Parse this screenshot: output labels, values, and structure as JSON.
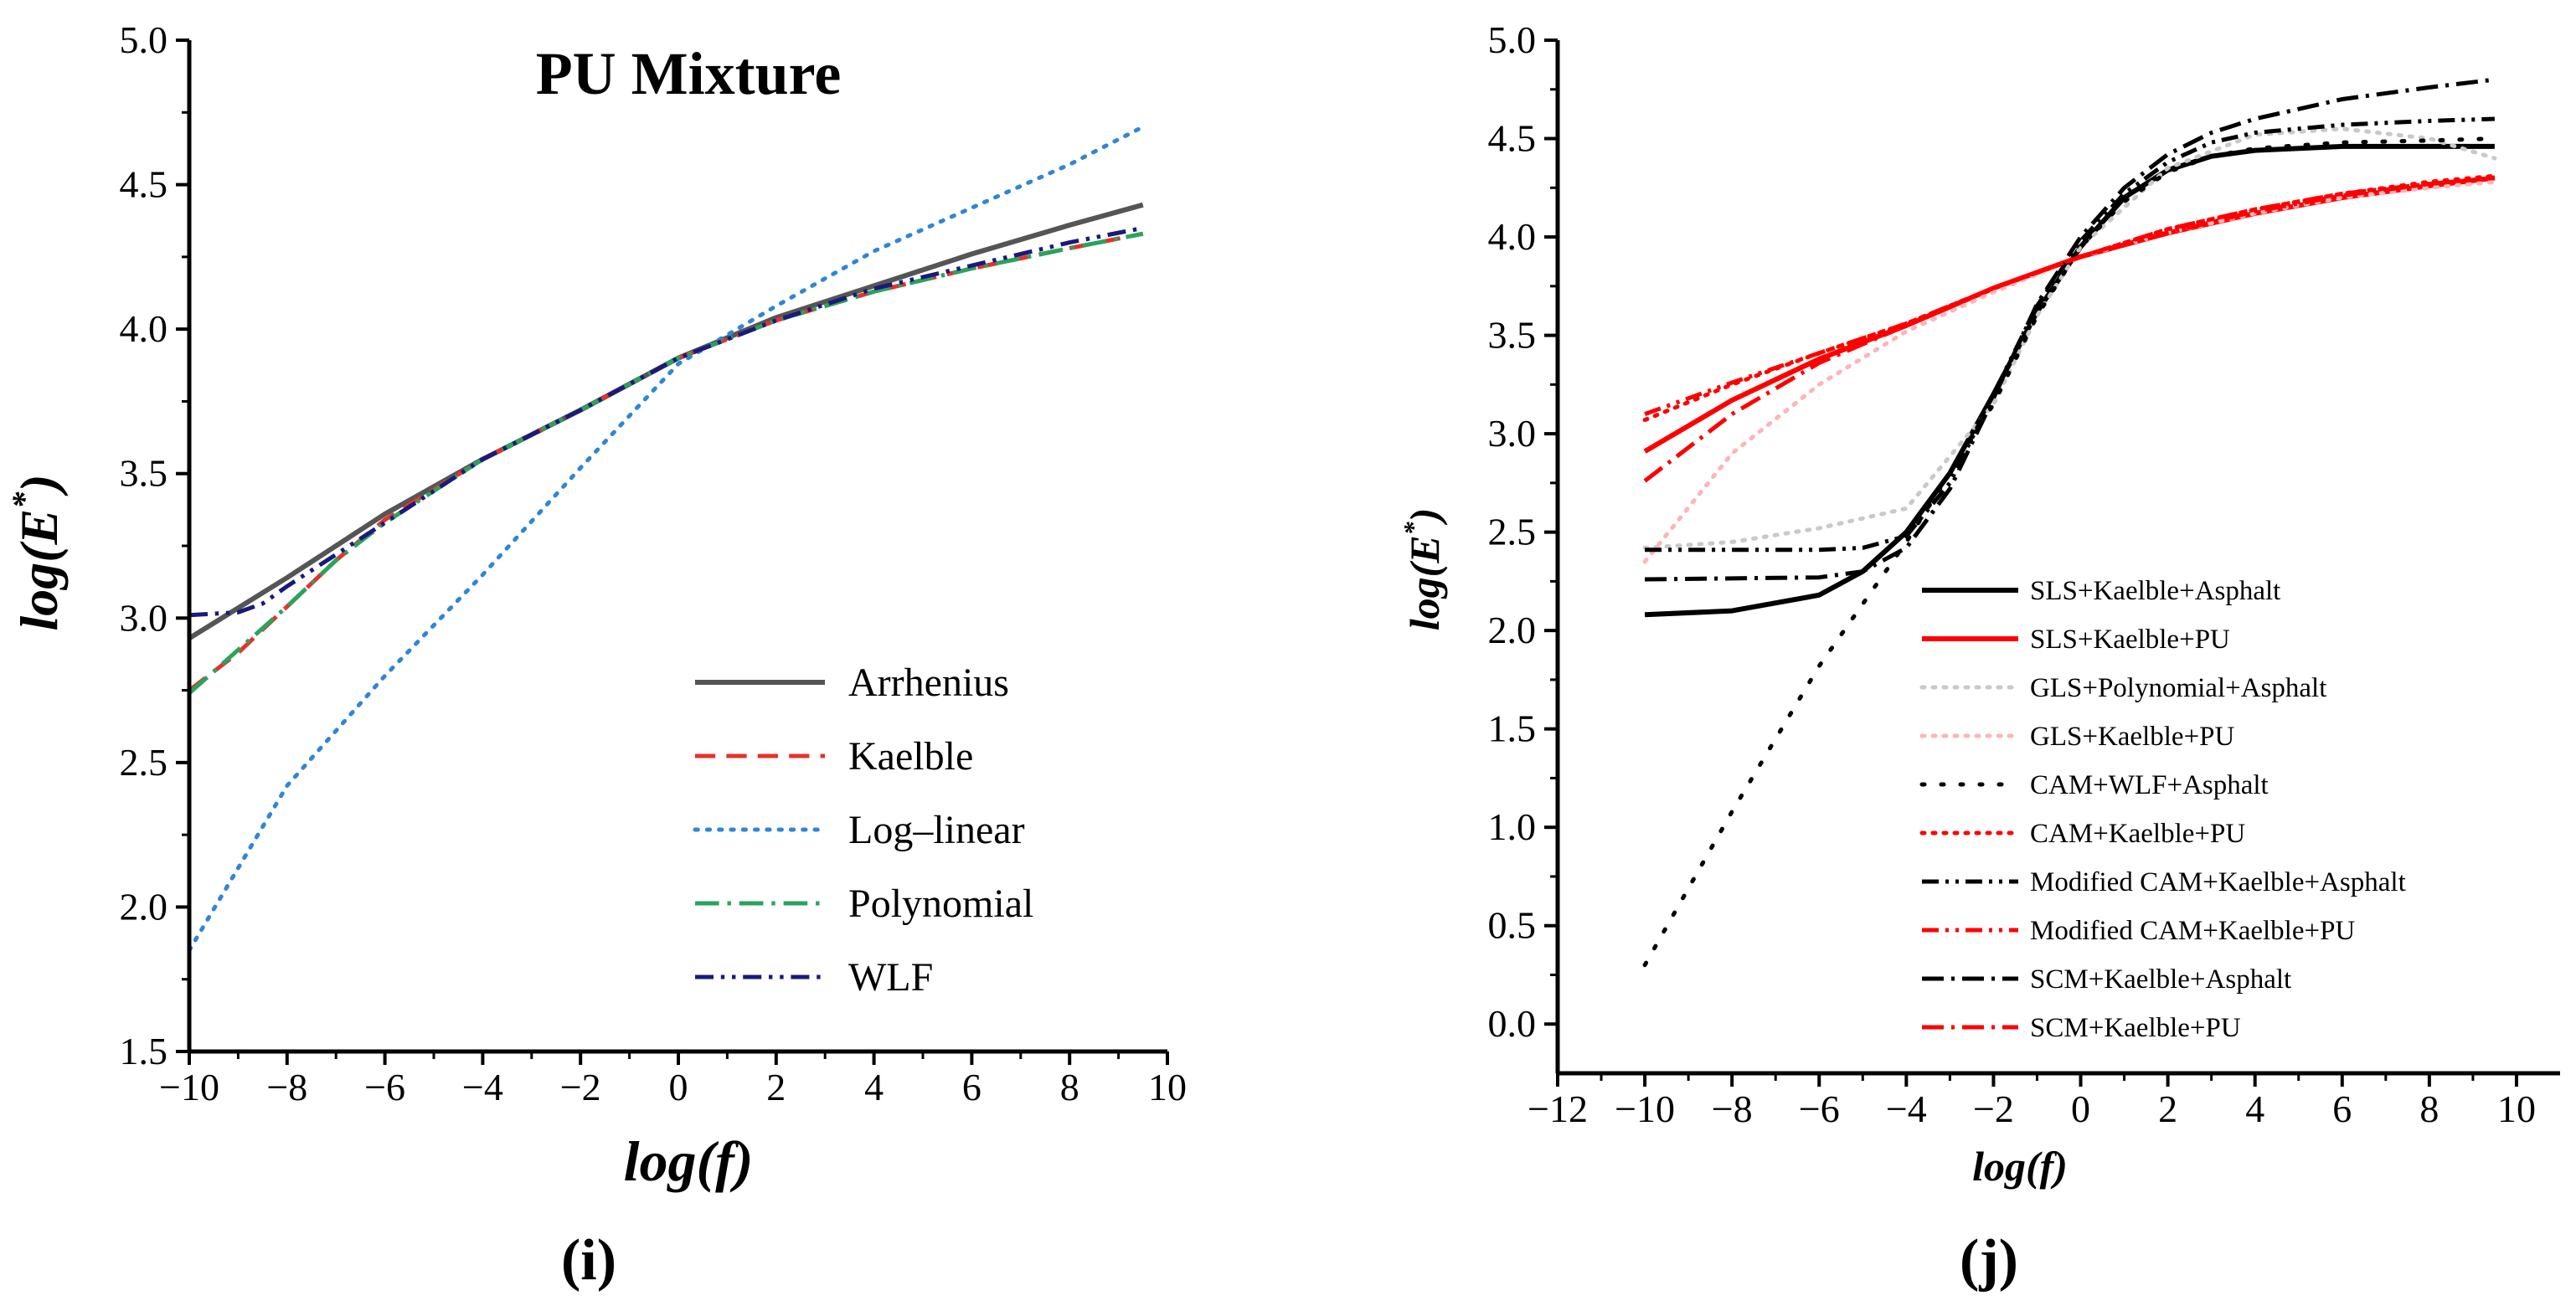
{
  "chart_data": [
    {
      "type": "line",
      "panel": "(i)",
      "panel_letter": "i",
      "title": "PU Mixture",
      "xlabel": "log(f)",
      "ylabel_base": "log(E",
      "ylabel_sup": "*",
      "ylabel_end": ")",
      "xlim": [
        -10,
        10
      ],
      "ylim": [
        1.5,
        5.0
      ],
      "xticks": [
        -10,
        -8,
        -6,
        -4,
        -2,
        0,
        2,
        4,
        6,
        8,
        10
      ],
      "xtick_labels": [
        "−10",
        "−8",
        "−6",
        "−4",
        "−2",
        "0",
        "2",
        "4",
        "6",
        "8",
        "10"
      ],
      "yticks": [
        1.5,
        2.0,
        2.5,
        3.0,
        3.5,
        4.0,
        4.5,
        5.0
      ],
      "ytick_labels": [
        "1.5",
        "2.0",
        "2.5",
        "3.0",
        "3.5",
        "4.0",
        "4.5",
        "5.0"
      ],
      "legend_position": "bottom-right",
      "series": [
        {
          "name": "Arrhenius",
          "color": "#555555",
          "style": "solid",
          "x": [
            -10,
            -8,
            -6,
            -4,
            -2,
            0,
            2,
            4,
            6,
            8,
            9.5
          ],
          "y": [
            2.93,
            3.14,
            3.36,
            3.55,
            3.72,
            3.9,
            4.04,
            4.15,
            4.26,
            4.36,
            4.43
          ]
        },
        {
          "name": "Kaelble",
          "color": "#e8302a",
          "style": "dashed",
          "x": [
            -10,
            -9,
            -8,
            -7,
            -6,
            -4,
            -2,
            0,
            2,
            4,
            6,
            8,
            9.5
          ],
          "y": [
            2.75,
            2.88,
            3.04,
            3.2,
            3.34,
            3.55,
            3.72,
            3.9,
            4.03,
            4.13,
            4.21,
            4.28,
            4.33
          ]
        },
        {
          "name": "Log–linear",
          "color": "#2f86d6",
          "style": "dotted",
          "x": [
            -10,
            -8,
            -6,
            -4,
            -2,
            0,
            2,
            4,
            6,
            8,
            9.5
          ],
          "y": [
            1.85,
            2.42,
            2.8,
            3.15,
            3.52,
            3.88,
            4.08,
            4.27,
            4.42,
            4.57,
            4.7
          ]
        },
        {
          "name": "Polynomial",
          "color": "#2aa35c",
          "style": "dashdot",
          "x": [
            -10,
            -9,
            -8,
            -7,
            -6,
            -4,
            -2,
            0,
            2,
            4,
            6,
            8,
            9.5
          ],
          "y": [
            2.74,
            2.89,
            3.04,
            3.2,
            3.33,
            3.55,
            3.72,
            3.9,
            4.03,
            4.13,
            4.21,
            4.28,
            4.33
          ]
        },
        {
          "name": "WLF",
          "color": "#1a1a7a",
          "style": "dashdotdot",
          "x": [
            -10,
            -9,
            -8.5,
            -8,
            -7,
            -6,
            -4,
            -2,
            0,
            2,
            4,
            6,
            8,
            9.5
          ],
          "y": [
            3.01,
            3.02,
            3.05,
            3.11,
            3.22,
            3.33,
            3.55,
            3.72,
            3.9,
            4.03,
            4.14,
            4.22,
            4.3,
            4.35
          ]
        }
      ]
    },
    {
      "type": "line",
      "panel": "(j)",
      "panel_letter": "j",
      "xlabel": "log(f)",
      "ylabel_base": "log(E",
      "ylabel_sup": "*",
      "ylabel_end": ")",
      "xlim": [
        -12,
        11
      ],
      "ylim": [
        -0.25,
        5.0
      ],
      "xticks": [
        -12,
        -10,
        -8,
        -6,
        -4,
        -2,
        0,
        2,
        4,
        6,
        8,
        10
      ],
      "xtick_labels": [
        "−12",
        "−10",
        "−8",
        "−6",
        "−4",
        "−2",
        "0",
        "2",
        "4",
        "6",
        "8",
        "10"
      ],
      "yticks": [
        0.0,
        0.5,
        1.0,
        1.5,
        2.0,
        2.5,
        3.0,
        3.5,
        4.0,
        4.5,
        5.0
      ],
      "ytick_labels": [
        "0.0",
        "0.5",
        "1.0",
        "1.5",
        "2.0",
        "2.5",
        "3.0",
        "3.5",
        "4.0",
        "4.5",
        "5.0"
      ],
      "legend_position": "center-right",
      "series": [
        {
          "name": "SLS+Kaelble+Asphalt",
          "color": "#000000",
          "style": "solid",
          "x": [
            -10,
            -8,
            -6,
            -5,
            -4,
            -3,
            -2,
            -1,
            0,
            1,
            2,
            3,
            4,
            6,
            8,
            9.5
          ],
          "y": [
            2.08,
            2.1,
            2.18,
            2.3,
            2.5,
            2.8,
            3.2,
            3.62,
            3.95,
            4.2,
            4.34,
            4.41,
            4.44,
            4.46,
            4.46,
            4.46
          ]
        },
        {
          "name": "SLS+Kaelble+PU",
          "color": "#ff0000",
          "style": "solid",
          "x": [
            -10,
            -8,
            -6,
            -4,
            -2,
            0,
            2,
            4,
            6,
            8,
            9.5
          ],
          "y": [
            2.91,
            3.17,
            3.38,
            3.55,
            3.74,
            3.9,
            4.02,
            4.12,
            4.2,
            4.26,
            4.3
          ]
        },
        {
          "name": "GLS+Polynomial+Asphalt",
          "color": "#c9c9c9",
          "style": "dotted",
          "x": [
            -10,
            -8,
            -6,
            -4,
            -2,
            -1,
            0,
            1,
            2,
            4,
            6,
            8,
            9.5
          ],
          "y": [
            2.42,
            2.45,
            2.52,
            2.62,
            3.15,
            3.6,
            3.95,
            4.15,
            4.35,
            4.52,
            4.55,
            4.5,
            4.4
          ]
        },
        {
          "name": "GLS+Kaelble+PU",
          "color": "#ffb3bb",
          "style": "dotted",
          "x": [
            -10,
            -8,
            -6,
            -4,
            -2,
            0,
            2,
            4,
            6,
            8,
            9.5
          ],
          "y": [
            2.35,
            2.9,
            3.25,
            3.52,
            3.72,
            3.9,
            4.02,
            4.12,
            4.2,
            4.25,
            4.28
          ]
        },
        {
          "name": "CAM+WLF+Asphalt",
          "color": "#000000",
          "style": "sparsedot",
          "x": [
            -10,
            -8,
            -6,
            -4,
            -2,
            -1,
            0,
            1,
            2,
            3,
            4,
            6,
            8,
            9.5
          ],
          "y": [
            0.3,
            1.08,
            1.82,
            2.45,
            3.15,
            3.6,
            3.95,
            4.18,
            4.33,
            4.41,
            4.45,
            4.48,
            4.49,
            4.5
          ]
        },
        {
          "name": "CAM+Kaelble+PU",
          "color": "#ff0000",
          "style": "dotted",
          "x": [
            -10,
            -8,
            -6,
            -4,
            -2,
            0,
            2,
            4,
            6,
            8,
            9.5
          ],
          "y": [
            3.07,
            3.25,
            3.41,
            3.56,
            3.74,
            3.9,
            4.04,
            4.14,
            4.22,
            4.28,
            4.31
          ]
        },
        {
          "name": "Modified CAM+Kaelble+Asphalt",
          "color": "#000000",
          "style": "dashdotdot",
          "x": [
            -10,
            -6,
            -5,
            -4,
            -3,
            -2,
            -1,
            0,
            1,
            2,
            3,
            4,
            6,
            8,
            9.5
          ],
          "y": [
            2.41,
            2.41,
            2.42,
            2.48,
            2.75,
            3.2,
            3.65,
            3.98,
            4.22,
            4.38,
            4.48,
            4.53,
            4.57,
            4.59,
            4.6
          ]
        },
        {
          "name": "Modified CAM+Kaelble+PU",
          "color": "#ff0000",
          "style": "dashdotdot",
          "x": [
            -10,
            -8,
            -6,
            -4,
            -2,
            0,
            2,
            4,
            6,
            8,
            9.5
          ],
          "y": [
            3.1,
            3.26,
            3.41,
            3.56,
            3.74,
            3.9,
            4.04,
            4.14,
            4.22,
            4.27,
            4.3
          ]
        },
        {
          "name": "SCM+Kaelble+Asphalt",
          "color": "#000000",
          "style": "dashdot",
          "x": [
            -10,
            -6,
            -5,
            -4,
            -3,
            -2,
            -1,
            0,
            1,
            2,
            3,
            4,
            6,
            8,
            9.5
          ],
          "y": [
            2.26,
            2.27,
            2.3,
            2.42,
            2.72,
            3.18,
            3.66,
            4.0,
            4.25,
            4.42,
            4.53,
            4.6,
            4.7,
            4.76,
            4.8
          ]
        },
        {
          "name": "SCM+Kaelble+PU",
          "color": "#ff0000",
          "style": "dashdot",
          "x": [
            -10,
            -8,
            -6,
            -4,
            -2,
            0,
            2,
            4,
            6,
            8,
            9.5
          ],
          "y": [
            2.76,
            3.1,
            3.36,
            3.55,
            3.74,
            3.9,
            4.02,
            4.13,
            4.21,
            4.27,
            4.3
          ]
        }
      ]
    }
  ]
}
